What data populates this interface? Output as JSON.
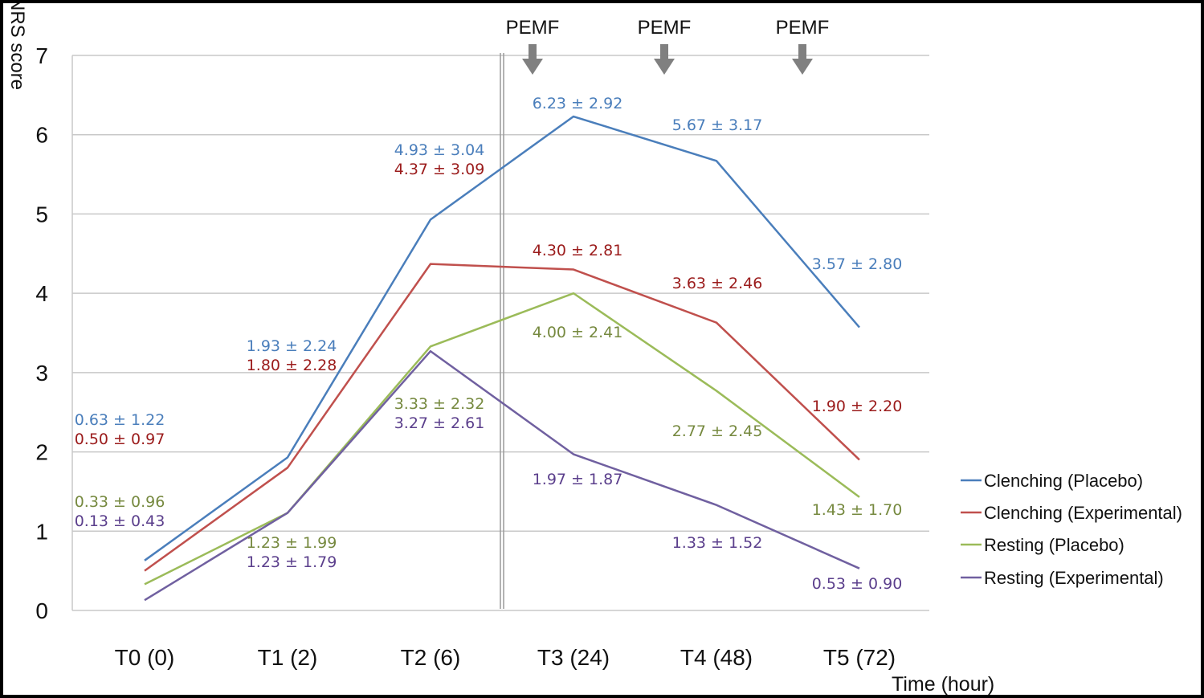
{
  "chart_data": {
    "type": "line",
    "ylabel": "NRS score",
    "xlabel": "Time (hour)",
    "categories": [
      "T0 (0)",
      "T1 (2)",
      "T2 (6)",
      "T3 (24)",
      "T4 (48)",
      "T5 (72)"
    ],
    "ylim": [
      0,
      7
    ],
    "yticks": [
      "0",
      "1",
      "2",
      "3",
      "4",
      "5",
      "6",
      "7"
    ],
    "grid": true,
    "legend_position": "right",
    "series": [
      {
        "name": "Clenching (Placebo)",
        "color": "#4a7ebb",
        "values": [
          0.63,
          1.93,
          4.93,
          6.23,
          5.67,
          3.57
        ],
        "labels": [
          "0.63 ± 1.22",
          "1.93 ± 2.24",
          "4.93 ± 3.04",
          "6.23 ± 2.92",
          "5.67 ± 3.17",
          "3.57 ± 2.80"
        ]
      },
      {
        "name": "Clenching (Experimental)",
        "color": "#c0504d",
        "label_color": "#9b1c1c",
        "values": [
          0.5,
          1.8,
          4.37,
          4.3,
          3.63,
          1.9
        ],
        "labels": [
          "0.50 ± 0.97",
          "1.80 ± 2.28",
          "4.37 ± 3.09",
          "4.30 ± 2.81",
          "3.63 ± 2.46",
          "1.90 ± 2.20"
        ]
      },
      {
        "name": "Resting (Placebo)",
        "color": "#9bbb59",
        "label_color": "#76893f",
        "values": [
          0.33,
          1.23,
          3.33,
          4.0,
          2.77,
          1.43
        ],
        "labels": [
          "0.33 ± 0.96",
          "1.23 ± 1.99",
          "3.33 ± 2.32",
          "4.00 ± 2.41",
          "2.77 ± 2.45",
          "1.43 ± 1.70"
        ]
      },
      {
        "name": "Resting (Experimental)",
        "color": "#7060a0",
        "label_color": "#5b3f8c",
        "values": [
          0.13,
          1.23,
          3.27,
          1.97,
          1.33,
          0.53
        ],
        "labels": [
          "0.13 ± 0.43",
          "1.23 ± 1.79",
          "3.27 ± 2.61",
          "1.97 ± 1.87",
          "1.33 ± 1.52",
          "0.53 ± 0.90"
        ]
      }
    ],
    "annotations": [
      {
        "text": "PEMF",
        "at": 2.75
      },
      {
        "text": "PEMF",
        "at": 3.65
      },
      {
        "text": "PEMF",
        "at": 4.6
      }
    ],
    "divider_at": 2.5
  }
}
